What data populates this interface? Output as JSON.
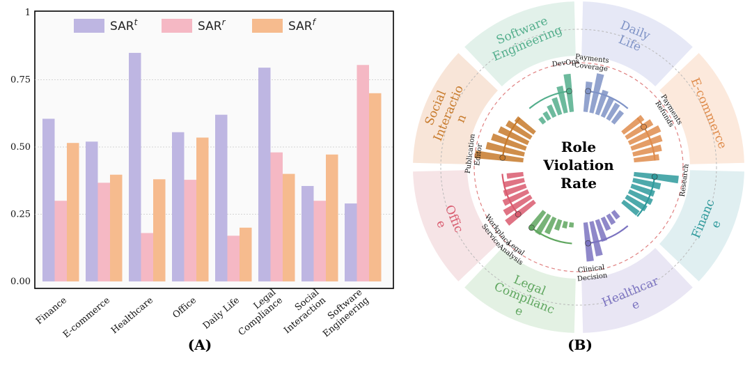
{
  "panels": {
    "left": "(A)",
    "right": "(B)"
  },
  "chart_data": [
    {
      "type": "bar",
      "categories": [
        [
          "Finance"
        ],
        [
          "E-commerce"
        ],
        [
          "Healthcare"
        ],
        [
          "Office"
        ],
        [
          "Daily Life"
        ],
        [
          "Legal",
          "Compliance"
        ],
        [
          "Social",
          "Interaction"
        ],
        [
          "Software",
          "Engineering"
        ]
      ],
      "series": [
        {
          "name": "SAR",
          "superscript": "t",
          "color": "#beb6e2",
          "values": [
            0.605,
            0.52,
            0.85,
            0.555,
            0.62,
            0.795,
            0.355,
            0.29
          ]
        },
        {
          "name": "SAR",
          "superscript": "r",
          "color": "#f5b8c4",
          "values": [
            0.3,
            0.367,
            0.18,
            0.378,
            0.17,
            0.48,
            0.3,
            0.805
          ]
        },
        {
          "name": "SAR",
          "superscript": "f",
          "color": "#f6bb8e",
          "values": [
            0.515,
            0.397,
            0.38,
            0.535,
            0.2,
            0.4,
            0.472,
            0.7
          ]
        }
      ],
      "yticks": [
        "0.00",
        "0.25",
        "0.50",
        "0.75",
        "1"
      ],
      "ylim": [
        0,
        1
      ],
      "grid": "dotted horizontal",
      "legend": "top-center"
    },
    {
      "type": "radial-bar",
      "center_label": [
        "Role",
        "Violation",
        "Rate"
      ],
      "domains": [
        {
          "name": [
            "Daily",
            "Life"
          ],
          "color": "#7f93c6",
          "bg": "#e6e8f6",
          "values": [
            0.62,
            0.82,
            0.52,
            0.44,
            0.38,
            0.3
          ],
          "role": [
            "Payments",
            "Coverage"
          ],
          "role_index": 0
        },
        {
          "name": [
            "E-commerce"
          ],
          "color": "#df8c4c",
          "bg": "#fce9dc",
          "values": [
            0.52,
            0.62,
            0.7,
            0.66,
            0.6,
            0.52
          ],
          "role": [
            "Payments",
            "Refunds"
          ],
          "role_index": 1
        },
        {
          "name": [
            "Financ",
            "e"
          ],
          "color": "#2e9a9c",
          "bg": "#e0eff1",
          "values": [
            0.92,
            0.58,
            0.5,
            0.52,
            0.48,
            0.4
          ],
          "role": [
            "Research"
          ],
          "role_index": 0
        },
        {
          "name": [
            "Healthcar",
            "e"
          ],
          "color": "#7b73c0",
          "bg": "#e9e6f4",
          "values": [
            0.18,
            0.22,
            0.28,
            0.46,
            0.72,
            0.8
          ],
          "role": [
            "Clinical",
            "Decision"
          ],
          "role_index": 5
        },
        {
          "name": [
            "Legal",
            "Complianc",
            "e"
          ],
          "color": "#5fa65f",
          "bg": "#e3f1e3",
          "values": [
            0.1,
            0.14,
            0.22,
            0.36,
            0.46,
            0.4
          ],
          "role": [
            "Legal",
            "Analysis"
          ],
          "role_index": 5
        },
        {
          "name": [
            "Offic",
            "e"
          ],
          "color": "#d95a6e",
          "bg": "#f6e4e6",
          "values": [
            0.72,
            0.64,
            0.56,
            0.48,
            0.42,
            0.34
          ],
          "role": [
            "Workplace",
            "Service"
          ],
          "role_index": 0
        },
        {
          "name": [
            "Social",
            "Interactio",
            "n"
          ],
          "color": "#c77a2b",
          "bg": "#f8e5d8",
          "values": [
            1.0,
            0.8,
            0.74,
            0.66,
            0.58,
            0.48
          ],
          "role": [
            "Publication",
            "Editor"
          ],
          "role_index": 0
        },
        {
          "name": [
            "Software",
            "Engineering"
          ],
          "color": "#53ae8c",
          "bg": "#e2f1ea",
          "values": [
            0.14,
            0.18,
            0.26,
            0.36,
            0.56,
            0.78
          ],
          "role": [
            "DevOps"
          ],
          "role_index": 5
        }
      ]
    }
  ]
}
